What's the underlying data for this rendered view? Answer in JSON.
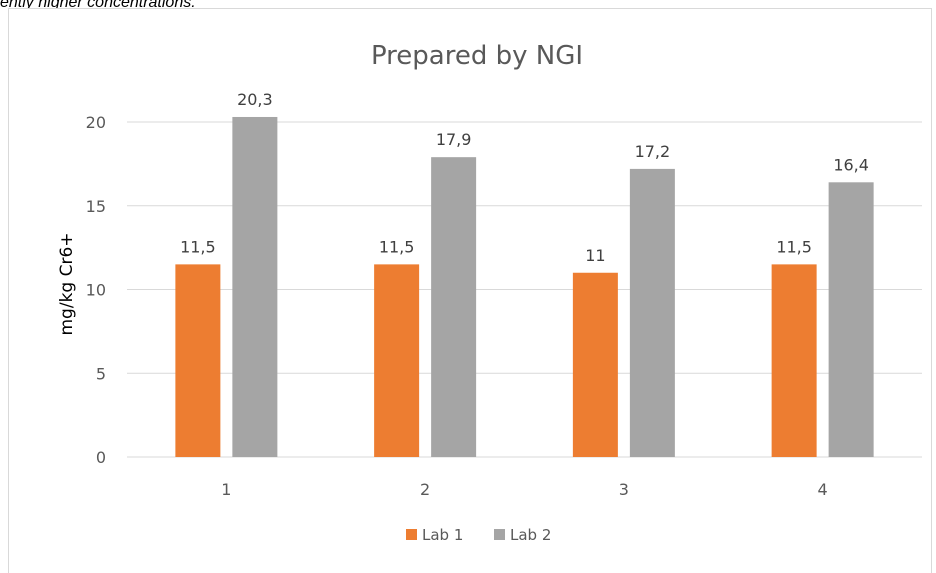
{
  "snippet_text": "ently higher concentrations.",
  "chart_data": {
    "type": "bar",
    "title": "Prepared by NGI",
    "xlabel": "",
    "ylabel": "mg/kg Cr6+",
    "categories": [
      "1",
      "2",
      "3",
      "4"
    ],
    "series": [
      {
        "name": "Lab 1",
        "color": "#ed7d31",
        "values": [
          11.5,
          11.5,
          11,
          11.5
        ],
        "labels": [
          "11,5",
          "11,5",
          "11",
          "11,5"
        ]
      },
      {
        "name": "Lab 2",
        "color": "#a5a5a5",
        "values": [
          20.3,
          17.9,
          17.2,
          16.4
        ],
        "labels": [
          "20,3",
          "17,9",
          "17,2",
          "16,4"
        ]
      }
    ],
    "ylim": [
      0,
      20
    ],
    "yticks": [
      0,
      5,
      10,
      15,
      20
    ],
    "grid": true,
    "legend": "bottom-center"
  }
}
